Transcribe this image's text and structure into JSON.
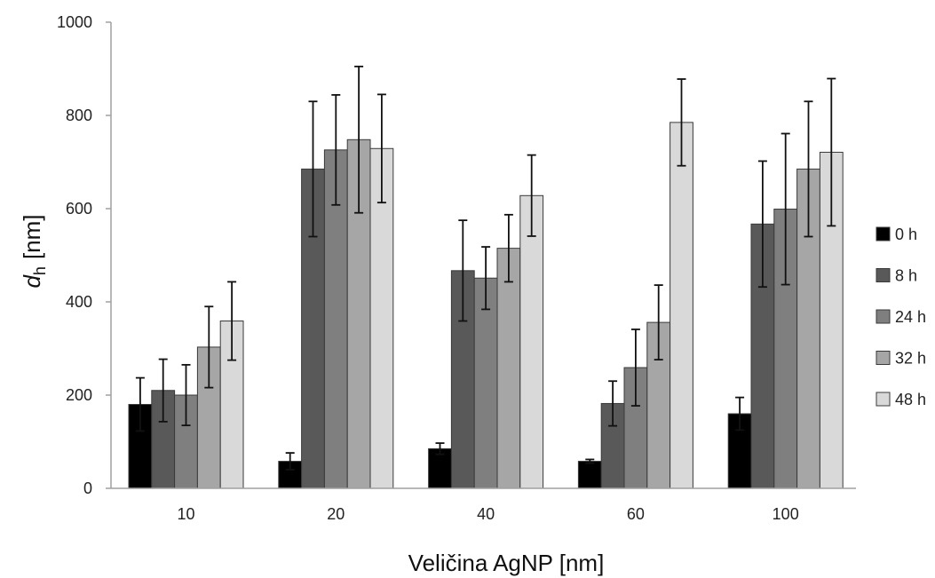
{
  "chart_data": {
    "type": "bar",
    "title": "",
    "xlabel": "Veličina AgNP [nm]",
    "ylabel_main": "d",
    "ylabel_sub": "h",
    "ylabel_unit": "[nm]",
    "categories": [
      "10",
      "20",
      "40",
      "60",
      "100"
    ],
    "ylim": [
      0,
      1000
    ],
    "yticks": [
      "0",
      "200",
      "400",
      "600",
      "800",
      "1000"
    ],
    "grid": false,
    "legend_position": "right",
    "error_bars": true,
    "series": [
      {
        "name": "0 h",
        "color": "#000000",
        "values": [
          180,
          58,
          85,
          58,
          160
        ],
        "errors": [
          57,
          18,
          12,
          4,
          35
        ]
      },
      {
        "name": "8 h",
        "color": "#595959",
        "values": [
          210,
          685,
          467,
          182,
          567
        ],
        "errors": [
          67,
          145,
          108,
          48,
          135
        ]
      },
      {
        "name": "24 h",
        "color": "#7f7f7f",
        "values": [
          200,
          726,
          451,
          259,
          599
        ],
        "errors": [
          65,
          118,
          67,
          82,
          162
        ]
      },
      {
        "name": "32 h",
        "color": "#a6a6a6",
        "values": [
          303,
          748,
          515,
          356,
          685
        ],
        "errors": [
          87,
          157,
          72,
          80,
          145
        ]
      },
      {
        "name": "48 h",
        "color": "#d9d9d9",
        "values": [
          359,
          729,
          628,
          785,
          721
        ],
        "errors": [
          84,
          116,
          87,
          93,
          158
        ]
      }
    ]
  }
}
